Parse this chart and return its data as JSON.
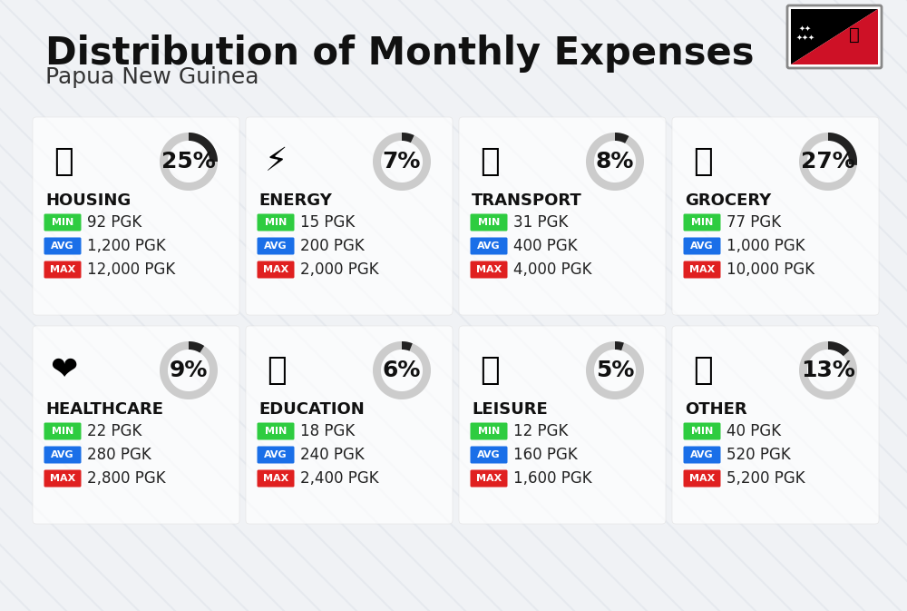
{
  "title": "Distribution of Monthly Expenses",
  "subtitle": "Papua New Guinea",
  "background_color": "#f0f2f5",
  "card_background": "#ffffff",
  "categories": [
    {
      "name": "HOUSING",
      "percent": 25,
      "icon": "🏢",
      "min_val": "92 PGK",
      "avg_val": "1,200 PGK",
      "max_val": "12,000 PGK",
      "row": 0,
      "col": 0
    },
    {
      "name": "ENERGY",
      "percent": 7,
      "icon": "⚡",
      "min_val": "15 PGK",
      "avg_val": "200 PGK",
      "max_val": "2,000 PGK",
      "row": 0,
      "col": 1
    },
    {
      "name": "TRANSPORT",
      "percent": 8,
      "icon": "🚌",
      "min_val": "31 PGK",
      "avg_val": "400 PGK",
      "max_val": "4,000 PGK",
      "row": 0,
      "col": 2
    },
    {
      "name": "GROCERY",
      "percent": 27,
      "icon": "🛒",
      "min_val": "77 PGK",
      "avg_val": "1,000 PGK",
      "max_val": "10,000 PGK",
      "row": 0,
      "col": 3
    },
    {
      "name": "HEALTHCARE",
      "percent": 9,
      "icon": "❤",
      "min_val": "22 PGK",
      "avg_val": "280 PGK",
      "max_val": "2,800 PGK",
      "row": 1,
      "col": 0
    },
    {
      "name": "EDUCATION",
      "percent": 6,
      "icon": "🎓",
      "min_val": "18 PGK",
      "avg_val": "240 PGK",
      "max_val": "2,400 PGK",
      "row": 1,
      "col": 1
    },
    {
      "name": "LEISURE",
      "percent": 5,
      "icon": "🛍",
      "min_val": "12 PGK",
      "avg_val": "160 PGK",
      "max_val": "1,600 PGK",
      "row": 1,
      "col": 2
    },
    {
      "name": "OTHER",
      "percent": 13,
      "icon": "💼",
      "min_val": "40 PGK",
      "avg_val": "520 PGK",
      "max_val": "5,200 PGK",
      "row": 1,
      "col": 3
    }
  ],
  "min_color": "#2ecc40",
  "avg_color": "#1a6fe8",
  "max_color": "#e02020",
  "label_text_color": "#ffffff",
  "donut_filled_color": "#222222",
  "donut_empty_color": "#cccccc",
  "title_fontsize": 30,
  "subtitle_fontsize": 18,
  "category_fontsize": 13,
  "value_fontsize": 12,
  "percent_fontsize": 18
}
